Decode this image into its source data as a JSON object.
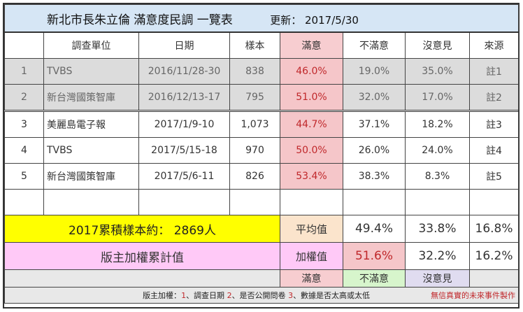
{
  "title": "新北市長朱立倫  滿意度民調 一覽表",
  "update_label": "更新：",
  "update_date": "2017/5/30",
  "headers": [
    "",
    "調查單位",
    "日期",
    "樣本",
    "滿意",
    "不滿意",
    "沒意見",
    "來源"
  ],
  "rows": [
    {
      "no": "1",
      "org": "TVBS",
      "date": "2016/11/28-30",
      "sample": "838",
      "sat": "46.0%",
      "unsat": "19.0%",
      "noop": "35.0%",
      "src": "註1"
    },
    {
      "no": "2",
      "org": "新台灣國策智庫",
      "date": "2016/12/13-17",
      "sample": "795",
      "sat": "51.0%",
      "unsat": "32.0%",
      "noop": "17.0%",
      "src": "註2"
    },
    {
      "no": "3",
      "org": "美麗島電子報",
      "date": "2017/1/9-10",
      "sample": "1,073",
      "sat": "44.7%",
      "unsat": "37.1%",
      "noop": "18.2%",
      "src": "註3"
    },
    {
      "no": "4",
      "org": "TVBS",
      "date": "2017/5/15-18",
      "sample": "970",
      "sat": "50.0%",
      "unsat": "26.0%",
      "noop": "24.0%",
      "src": "註4"
    },
    {
      "no": "5",
      "org": "新台灣國策智庫",
      "date": "2017/5/6-11",
      "sample": "826",
      "sat": "53.4%",
      "unsat": "38.3%",
      "noop": "8.3%",
      "src": "註5"
    }
  ],
  "summary": {
    "cumulative_label": "2017累積樣本約：",
    "cumulative_value": "2869人",
    "avg_label": "平均值",
    "avg_sat": "49.4%",
    "avg_unsat": "33.8%",
    "avg_noop": "16.8%"
  },
  "weighted": {
    "label": "版主加權累計值",
    "w_label": "加權值",
    "w_sat": "51.6%",
    "w_unsat": "32.2%",
    "w_noop": "16.2%"
  },
  "legend": {
    "sat": "滿意",
    "unsat": "不滿意",
    "noop": "沒意見"
  },
  "footer": {
    "prefix": "版主加權：",
    "n1": "1",
    "t1": "、調查日期 ",
    "n2": "2",
    "t2": "、是否公開問卷 ",
    "n3": "3",
    "t3": "、數據是否太高或太低",
    "credit": "無信真實的未來事件製作"
  },
  "colors": {
    "title_bg": "#d6e6f5",
    "satisfied_bg": "#f5c6c9",
    "satisfied_text": "#c0282b",
    "yellow": "#ffff00",
    "pink": "#ffc9f7",
    "unsat_bg": "#d7f5cc",
    "noop_bg": "#e0dcf0"
  }
}
